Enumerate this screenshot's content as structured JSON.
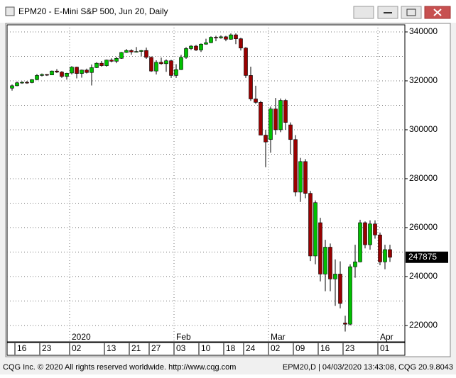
{
  "window_title": "EPM20 - E-Mini S&P 500, Jun 20, Daily",
  "footer_left": "CQG Inc. © 2020 All rights reserved worldwide. http://www.cqg.com",
  "footer_right": "EPM20,D | 04/03/2020 13:43:08, CQG 20.9.8043",
  "chart_data": {
    "type": "candlestick",
    "categories": [
      null,
      "16",
      null,
      null,
      null,
      null,
      "23",
      null,
      null,
      null,
      null,
      null,
      "02",
      null,
      null,
      null,
      null,
      null,
      null,
      "13",
      null,
      null,
      null,
      null,
      "21",
      null,
      null,
      null,
      "27",
      null,
      null,
      null,
      null,
      "03",
      null,
      null,
      null,
      null,
      "10",
      null,
      null,
      null,
      null,
      "18",
      null,
      null,
      null,
      "24",
      null,
      null,
      null,
      null,
      "02",
      null,
      null,
      null,
      null,
      "09",
      null,
      null,
      null,
      null,
      "16",
      null,
      null,
      null,
      null,
      "23",
      null,
      null,
      null,
      null,
      null,
      null,
      "01",
      null,
      null
    ],
    "month_categories": [
      null,
      null,
      null,
      null,
      null,
      null,
      null,
      null,
      null,
      null,
      null,
      null,
      "2020",
      null,
      null,
      null,
      null,
      null,
      null,
      null,
      null,
      null,
      null,
      null,
      null,
      null,
      null,
      null,
      null,
      null,
      null,
      null,
      null,
      "Feb",
      null,
      null,
      null,
      null,
      null,
      null,
      null,
      null,
      null,
      null,
      null,
      null,
      null,
      null,
      null,
      null,
      null,
      null,
      "Mar",
      null,
      null,
      null,
      null,
      null,
      null,
      null,
      null,
      null,
      null,
      null,
      null,
      null,
      null,
      null,
      null,
      null,
      null,
      null,
      null,
      null,
      "Apr",
      null,
      null
    ],
    "open": [
      317000,
      318000,
      319200,
      319400,
      319300,
      320500,
      322200,
      322600,
      322400,
      324000,
      323600,
      321800,
      323200,
      325600,
      323000,
      324400,
      323400,
      325400,
      327200,
      326200,
      328500,
      328000,
      329200,
      331600,
      332400,
      331800,
      332000,
      332400,
      329600,
      324000,
      327600,
      327000,
      328200,
      322200,
      324600,
      329600,
      333200,
      334200,
      332600,
      335000,
      335600,
      337800,
      337600,
      338000,
      337000,
      338800,
      337200,
      333400,
      322200,
      312600,
      311200,
      297800,
      296000,
      308500,
      300000,
      312000,
      302000,
      296000,
      274500,
      287000,
      274000,
      248400,
      262000,
      241000,
      252000,
      239000,
      241000,
      221000,
      220500,
      244000,
      246000,
      262000,
      253000,
      261500,
      257000,
      246000,
      251000
    ],
    "high": [
      318500,
      319700,
      319800,
      320000,
      320700,
      322800,
      323000,
      322800,
      324200,
      324800,
      324000,
      323300,
      326000,
      325800,
      324600,
      325000,
      326700,
      327600,
      328100,
      328700,
      329200,
      329800,
      331800,
      333000,
      332900,
      333800,
      332600,
      333600,
      330000,
      328400,
      329500,
      328800,
      328600,
      326800,
      330600,
      333800,
      334600,
      334700,
      335300,
      337200,
      338200,
      338400,
      338600,
      338400,
      339400,
      339400,
      337600,
      333800,
      325800,
      318000,
      311800,
      300000,
      309500,
      313000,
      312800,
      312600,
      303000,
      297800,
      288500,
      288000,
      275000,
      271100,
      264000,
      255000,
      253500,
      247000,
      246200,
      224000,
      245000,
      253000,
      263200,
      262500,
      263000,
      263000,
      258000,
      253000,
      253000
    ],
    "low": [
      316000,
      317800,
      318800,
      318800,
      319000,
      320200,
      321800,
      322000,
      322300,
      323200,
      321200,
      320500,
      322600,
      321000,
      321300,
      323000,
      318100,
      325200,
      325800,
      325800,
      327600,
      327200,
      329000,
      331400,
      330700,
      331600,
      330000,
      329000,
      323700,
      322600,
      326600,
      323700,
      321200,
      321200,
      324400,
      329000,
      332600,
      332200,
      331800,
      334800,
      335400,
      336200,
      337200,
      336200,
      336800,
      335000,
      332400,
      321200,
      311800,
      310600,
      297800,
      284700,
      290600,
      298000,
      299000,
      300000,
      290000,
      272800,
      270500,
      272000,
      246300,
      245000,
      238000,
      234000,
      234000,
      228000,
      227000,
      217500,
      220000,
      239500,
      245800,
      251500,
      251000,
      255500,
      244600,
      243000,
      246000
    ],
    "close": [
      318000,
      319200,
      319400,
      319200,
      320500,
      322200,
      322600,
      322400,
      324000,
      323600,
      321800,
      323100,
      325600,
      323000,
      324400,
      323400,
      325400,
      327200,
      326200,
      328500,
      328000,
      329200,
      331600,
      332400,
      331800,
      332000,
      332400,
      329600,
      324000,
      327600,
      327000,
      328200,
      322200,
      324600,
      329600,
      333200,
      334200,
      332600,
      335000,
      335600,
      337800,
      337600,
      338000,
      337000,
      338800,
      337200,
      333400,
      322200,
      312600,
      311200,
      297800,
      295000,
      308500,
      300000,
      312000,
      303000,
      296000,
      274500,
      287000,
      274000,
      248400,
      270200,
      241000,
      252000,
      239000,
      241000,
      229000,
      220500,
      244000,
      246000,
      262000,
      253000,
      261500,
      257000,
      246000,
      251000,
      247875
    ],
    "up_color": "#00c000",
    "down_color": "#9a0000",
    "ylim": [
      213300,
      342900
    ],
    "yticks": [
      220000,
      240000,
      260000,
      280000,
      300000,
      320000,
      340000
    ],
    "minor_yticks": [
      230000,
      250000,
      270000,
      290000,
      310000,
      330000
    ],
    "grid": true,
    "last_value": 247875
  }
}
